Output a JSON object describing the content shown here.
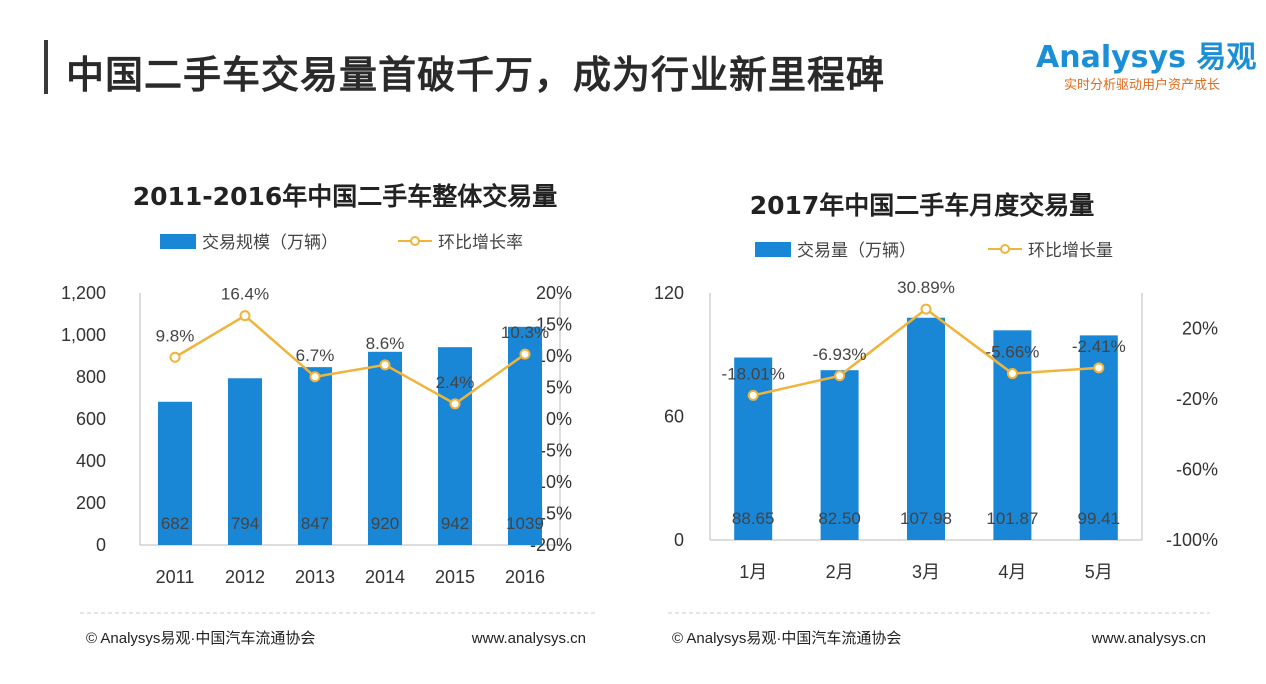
{
  "page": {
    "title": "中国二手车交易量首破千万，成为行业新里程碑",
    "logo_name": "Analysys 易观",
    "logo_tagline": "实时分析驱动用户资产成长"
  },
  "colors": {
    "bar": "#1a86d6",
    "line": "#f0b43c",
    "axis": "#bbbbbb"
  },
  "chart_data": [
    {
      "type": "bar",
      "title": "2011-2016年中国二手车整体交易量",
      "legend": {
        "bar": "交易规模（万辆）",
        "line": "环比增长率"
      },
      "categories": [
        "2011",
        "2012",
        "2013",
        "2014",
        "2015",
        "2016"
      ],
      "values": [
        682,
        794,
        847,
        920,
        942,
        1039
      ],
      "value_labels": [
        "682",
        "794",
        "847",
        "920",
        "942",
        "1039"
      ],
      "line_values": [
        9.8,
        16.4,
        6.7,
        8.6,
        2.4,
        10.3
      ],
      "line_labels": [
        "9.8%",
        "16.4%",
        "6.7%",
        "8.6%",
        "2.4%",
        "10.3%"
      ],
      "ylim": [
        0,
        1200
      ],
      "y_ticks": [
        "0",
        "200",
        "400",
        "600",
        "800",
        "1,000",
        "1,200"
      ],
      "y2lim": [
        -20,
        20
      ],
      "y2_ticks": [
        "-20%",
        "-15%",
        "-10%",
        "-5%",
        "0%",
        "5%",
        "10%",
        "15%",
        "20%"
      ],
      "footer_source": "© Analysys易观·中国汽车流通协会",
      "footer_url": "www.analysys.cn"
    },
    {
      "type": "bar",
      "title": "2017年中国二手车月度交易量",
      "legend": {
        "bar": "交易量（万辆）",
        "line": "环比增长量"
      },
      "categories": [
        "1月",
        "2月",
        "3月",
        "4月",
        "5月"
      ],
      "values": [
        88.65,
        82.5,
        107.98,
        101.87,
        99.41
      ],
      "value_labels": [
        "88.65",
        "82.50",
        "107.98",
        "101.87",
        "99.41"
      ],
      "line_values": [
        -18.01,
        -6.93,
        30.89,
        -5.66,
        -2.41
      ],
      "line_labels": [
        "-18.01%",
        "-6.93%",
        "30.89%",
        "-5.66%",
        "-2.41%"
      ],
      "ylim": [
        0,
        120
      ],
      "y_ticks": [
        "0",
        "60",
        "120"
      ],
      "y2lim": [
        -100,
        40
      ],
      "y2_ticks": [
        "-100%",
        "-60%",
        "-20%",
        "20%"
      ],
      "footer_source": "© Analysys易观·中国汽车流通协会",
      "footer_url": "www.analysys.cn"
    }
  ]
}
